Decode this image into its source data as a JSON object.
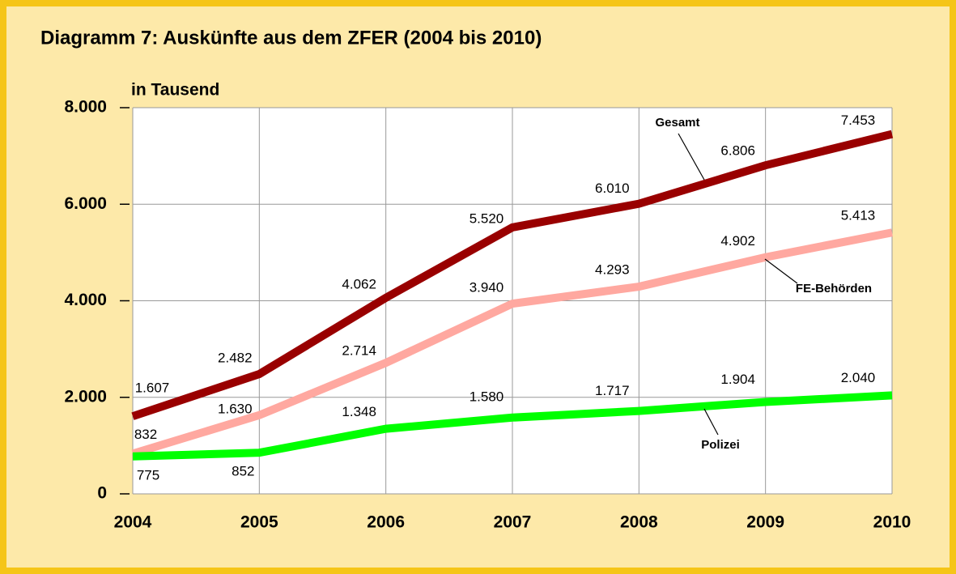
{
  "chart_data": {
    "type": "line",
    "title": "Diagramm 7: Auskünfte aus dem ZFER (2004 bis 2010)",
    "y_label": "in Tausend",
    "categories": [
      "2004",
      "2005",
      "2006",
      "2007",
      "2008",
      "2009",
      "2010"
    ],
    "ylim": [
      0,
      8000
    ],
    "yticks": [
      0,
      {
        "value": 2000,
        "label": "2.000"
      },
      {
        "value": 4000,
        "label": "4.000"
      },
      {
        "value": 6000,
        "label": "6.000"
      },
      {
        "value": 8000,
        "label": "8.000"
      }
    ],
    "grid": true,
    "series": [
      {
        "name": "Gesamt",
        "color": "#990000",
        "values": [
          1607,
          2482,
          4062,
          5520,
          6010,
          6806,
          7453
        ],
        "value_labels": [
          "1.607",
          "2.482",
          "4.062",
          "5.520",
          "6.010",
          "6.806",
          "7.453"
        ]
      },
      {
        "name": "FE-Behörden",
        "color": "#ffa8a0",
        "values": [
          832,
          1630,
          2714,
          3940,
          4293,
          4902,
          5413
        ],
        "value_labels": [
          "832",
          "1.630",
          "2.714",
          "3.940",
          "4.293",
          "4.902",
          "5.413"
        ]
      },
      {
        "name": "Polizei",
        "color": "#00ff00",
        "values": [
          775,
          852,
          1348,
          1580,
          1717,
          1904,
          2040
        ],
        "value_labels": [
          "775",
          "852",
          "1.348",
          "1.580",
          "1.717",
          "1.904",
          "2.040"
        ]
      }
    ]
  }
}
